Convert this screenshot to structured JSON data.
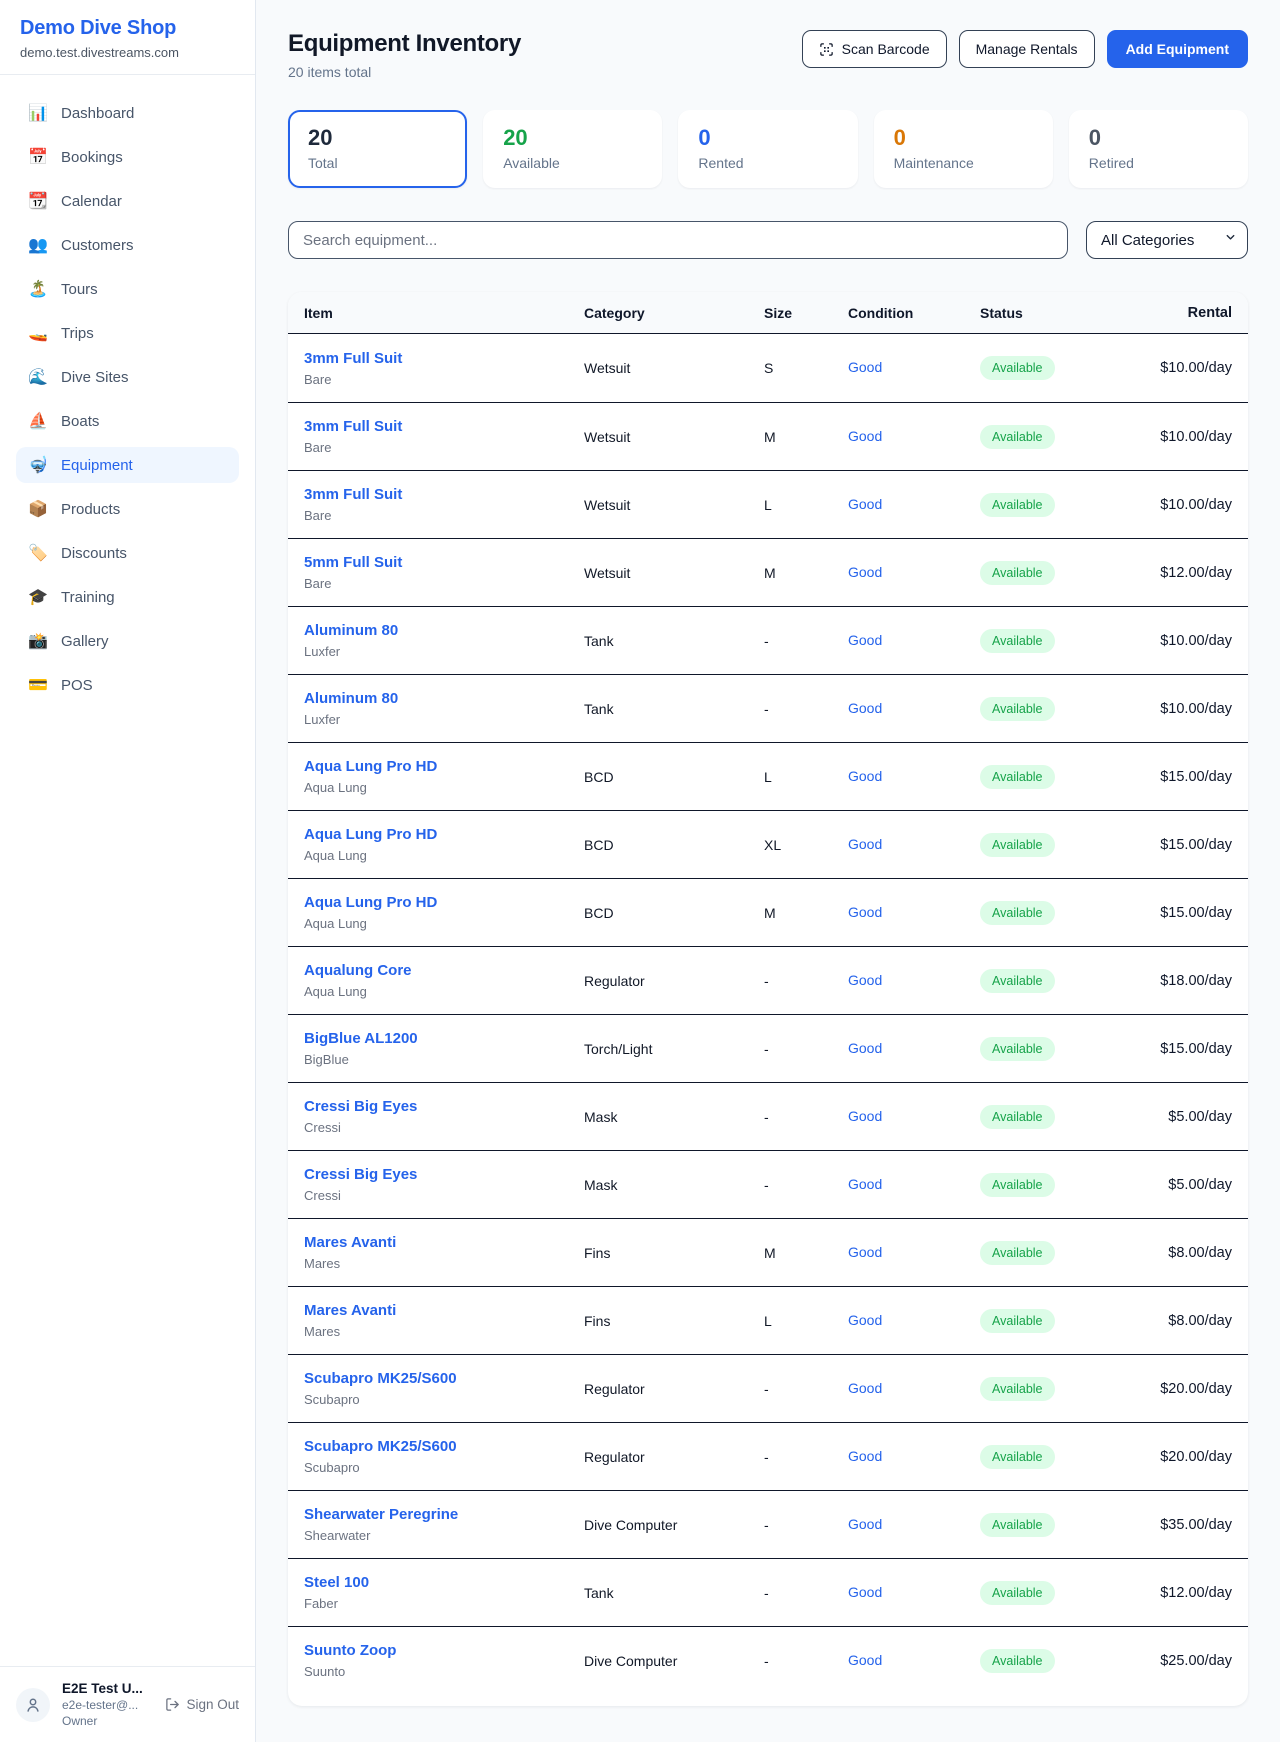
{
  "brand": {
    "name": "Demo Dive Shop",
    "domain": "demo.test.divestreams.com"
  },
  "sidebar": {
    "items": [
      {
        "id": "dashboard",
        "icon": "📊",
        "label": "Dashboard",
        "active": false
      },
      {
        "id": "bookings",
        "icon": "📅",
        "label": "Bookings",
        "active": false
      },
      {
        "id": "calendar",
        "icon": "📆",
        "label": "Calendar",
        "active": false
      },
      {
        "id": "customers",
        "icon": "👥",
        "label": "Customers",
        "active": false
      },
      {
        "id": "tours",
        "icon": "🏝️",
        "label": "Tours",
        "active": false
      },
      {
        "id": "trips",
        "icon": "🚤",
        "label": "Trips",
        "active": false
      },
      {
        "id": "dive-sites",
        "icon": "🌊",
        "label": "Dive Sites",
        "active": false
      },
      {
        "id": "boats",
        "icon": "⛵",
        "label": "Boats",
        "active": false
      },
      {
        "id": "equipment",
        "icon": "🤿",
        "label": "Equipment",
        "active": true
      },
      {
        "id": "products",
        "icon": "📦",
        "label": "Products",
        "active": false
      },
      {
        "id": "discounts",
        "icon": "🏷️",
        "label": "Discounts",
        "active": false
      },
      {
        "id": "training",
        "icon": "🎓",
        "label": "Training",
        "active": false
      },
      {
        "id": "gallery",
        "icon": "📸",
        "label": "Gallery",
        "active": false
      },
      {
        "id": "pos",
        "icon": "💳",
        "label": "POS",
        "active": false
      }
    ],
    "user": {
      "name": "E2E Test U...",
      "email": "e2e-tester@...",
      "role": "Owner",
      "sign_out_label": "Sign Out"
    }
  },
  "header": {
    "title": "Equipment Inventory",
    "subtitle": "20 items total",
    "scan_button": "Scan Barcode",
    "manage_button": "Manage Rentals",
    "add_button": "Add Equipment"
  },
  "stats": [
    {
      "value": "20",
      "label": "Total",
      "color": "#1e293b",
      "selected": true
    },
    {
      "value": "20",
      "label": "Available",
      "color": "#16a34a",
      "selected": false
    },
    {
      "value": "0",
      "label": "Rented",
      "color": "#2563eb",
      "selected": false
    },
    {
      "value": "0",
      "label": "Maintenance",
      "color": "#d97706",
      "selected": false
    },
    {
      "value": "0",
      "label": "Retired",
      "color": "#4b5563",
      "selected": false
    }
  ],
  "filters": {
    "search_placeholder": "Search equipment...",
    "category_selected": "All Categories"
  },
  "table": {
    "columns": [
      "Item",
      "Category",
      "Size",
      "Condition",
      "Status",
      "Rental"
    ],
    "rows": [
      {
        "name": "3mm Full Suit",
        "brand": "Bare",
        "category": "Wetsuit",
        "size": "S",
        "condition": "Good",
        "status": "Available",
        "rental": "$10.00/day"
      },
      {
        "name": "3mm Full Suit",
        "brand": "Bare",
        "category": "Wetsuit",
        "size": "M",
        "condition": "Good",
        "status": "Available",
        "rental": "$10.00/day"
      },
      {
        "name": "3mm Full Suit",
        "brand": "Bare",
        "category": "Wetsuit",
        "size": "L",
        "condition": "Good",
        "status": "Available",
        "rental": "$10.00/day"
      },
      {
        "name": "5mm Full Suit",
        "brand": "Bare",
        "category": "Wetsuit",
        "size": "M",
        "condition": "Good",
        "status": "Available",
        "rental": "$12.00/day"
      },
      {
        "name": "Aluminum 80",
        "brand": "Luxfer",
        "category": "Tank",
        "size": "-",
        "condition": "Good",
        "status": "Available",
        "rental": "$10.00/day"
      },
      {
        "name": "Aluminum 80",
        "brand": "Luxfer",
        "category": "Tank",
        "size": "-",
        "condition": "Good",
        "status": "Available",
        "rental": "$10.00/day"
      },
      {
        "name": "Aqua Lung Pro HD",
        "brand": "Aqua Lung",
        "category": "BCD",
        "size": "L",
        "condition": "Good",
        "status": "Available",
        "rental": "$15.00/day"
      },
      {
        "name": "Aqua Lung Pro HD",
        "brand": "Aqua Lung",
        "category": "BCD",
        "size": "XL",
        "condition": "Good",
        "status": "Available",
        "rental": "$15.00/day"
      },
      {
        "name": "Aqua Lung Pro HD",
        "brand": "Aqua Lung",
        "category": "BCD",
        "size": "M",
        "condition": "Good",
        "status": "Available",
        "rental": "$15.00/day"
      },
      {
        "name": "Aqualung Core",
        "brand": "Aqua Lung",
        "category": "Regulator",
        "size": "-",
        "condition": "Good",
        "status": "Available",
        "rental": "$18.00/day"
      },
      {
        "name": "BigBlue AL1200",
        "brand": "BigBlue",
        "category": "Torch/Light",
        "size": "-",
        "condition": "Good",
        "status": "Available",
        "rental": "$15.00/day"
      },
      {
        "name": "Cressi Big Eyes",
        "brand": "Cressi",
        "category": "Mask",
        "size": "-",
        "condition": "Good",
        "status": "Available",
        "rental": "$5.00/day"
      },
      {
        "name": "Cressi Big Eyes",
        "brand": "Cressi",
        "category": "Mask",
        "size": "-",
        "condition": "Good",
        "status": "Available",
        "rental": "$5.00/day"
      },
      {
        "name": "Mares Avanti",
        "brand": "Mares",
        "category": "Fins",
        "size": "M",
        "condition": "Good",
        "status": "Available",
        "rental": "$8.00/day"
      },
      {
        "name": "Mares Avanti",
        "brand": "Mares",
        "category": "Fins",
        "size": "L",
        "condition": "Good",
        "status": "Available",
        "rental": "$8.00/day"
      },
      {
        "name": "Scubapro MK25/S600",
        "brand": "Scubapro",
        "category": "Regulator",
        "size": "-",
        "condition": "Good",
        "status": "Available",
        "rental": "$20.00/day"
      },
      {
        "name": "Scubapro MK25/S600",
        "brand": "Scubapro",
        "category": "Regulator",
        "size": "-",
        "condition": "Good",
        "status": "Available",
        "rental": "$20.00/day"
      },
      {
        "name": "Shearwater Peregrine",
        "brand": "Shearwater",
        "category": "Dive Computer",
        "size": "-",
        "condition": "Good",
        "status": "Available",
        "rental": "$35.00/day"
      },
      {
        "name": "Steel 100",
        "brand": "Faber",
        "category": "Tank",
        "size": "-",
        "condition": "Good",
        "status": "Available",
        "rental": "$12.00/day"
      },
      {
        "name": "Suunto Zoop",
        "brand": "Suunto",
        "category": "Dive Computer",
        "size": "-",
        "condition": "Good",
        "status": "Available",
        "rental": "$25.00/day"
      }
    ]
  }
}
